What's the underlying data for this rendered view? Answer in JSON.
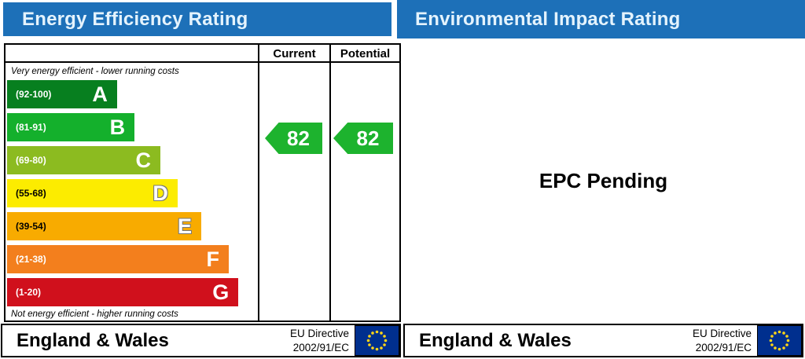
{
  "header": {
    "left_title": "Energy Efficiency Rating",
    "right_title": "Environmental Impact Rating",
    "bar_color": "#1d70b8",
    "text_color": "#e4f3fd"
  },
  "columns": {
    "current": "Current",
    "potential": "Potential"
  },
  "chart_data": {
    "type": "bar",
    "title": "Energy Efficiency Rating",
    "top_note": "Very energy efficient - lower running costs",
    "bottom_note": "Not energy efficient - higher running costs",
    "current_rating": 82,
    "potential_rating": 82,
    "rating_band": "B",
    "arrow_color": "#1db32e",
    "bands": [
      {
        "letter": "A",
        "range": "(92-100)",
        "color": "#077f1f",
        "width_pct": 44.7,
        "text_color": "#ffffff",
        "outline": false
      },
      {
        "letter": "B",
        "range": "(81-91)",
        "color": "#14b02c",
        "width_pct": 51.8,
        "text_color": "#ffffff",
        "outline": false
      },
      {
        "letter": "C",
        "range": "(69-80)",
        "color": "#8cbb20",
        "width_pct": 62.3,
        "text_color": "#ffffff",
        "outline": false
      },
      {
        "letter": "D",
        "range": "(55-68)",
        "color": "#fcec00",
        "width_pct": 69.3,
        "text_color": "#000000",
        "outline": true
      },
      {
        "letter": "E",
        "range": "(39-54)",
        "color": "#f8ab00",
        "width_pct": 78.9,
        "text_color": "#000000",
        "outline": true
      },
      {
        "letter": "F",
        "range": "(21-38)",
        "color": "#f37f1d",
        "width_pct": 90.1,
        "text_color": "#ffffff",
        "outline": false
      },
      {
        "letter": "G",
        "range": "(1-20)",
        "color": "#d0101c",
        "width_pct": 94.0,
        "text_color": "#ffffff",
        "outline": false
      }
    ]
  },
  "right_panel": {
    "message": "EPC Pending"
  },
  "footer": {
    "region": "England & Wales",
    "directive_line1": "EU Directive",
    "directive_line2": "2002/91/EC",
    "flag_blue": "#002f8e",
    "star_color": "#ffd617"
  }
}
